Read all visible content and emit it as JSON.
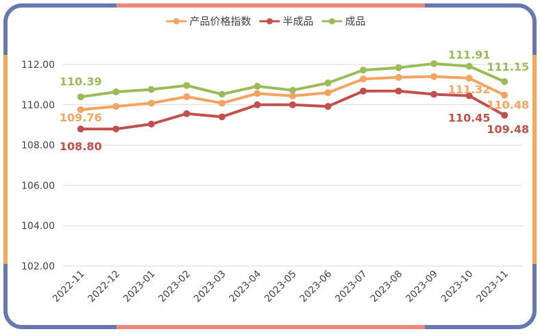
{
  "chart_data": {
    "type": "line",
    "title": "",
    "xlabel": "",
    "ylabel": "",
    "ylim": [
      102,
      112
    ],
    "yticks": [
      "102.00",
      "104.00",
      "106.00",
      "108.00",
      "110.00",
      "112.00"
    ],
    "categories": [
      "2022-11",
      "2022-12",
      "2023-01",
      "2023-02",
      "2023-03",
      "2023-04",
      "2023-05",
      "2023-06",
      "2023-07",
      "2023-08",
      "2023-09",
      "2023-10",
      "2023-11"
    ],
    "legend_position": "top-center",
    "grid": "horizontal",
    "series": [
      {
        "name": "产品价格指数",
        "color": "#f4a460",
        "values": [
          109.76,
          109.92,
          110.08,
          110.4,
          110.08,
          110.56,
          110.44,
          110.6,
          111.28,
          111.36,
          111.4,
          111.32,
          110.48
        ],
        "labels": [
          {
            "index": 0,
            "text": "109.76"
          },
          {
            "index": 11,
            "text": "111.32"
          },
          {
            "index": 12,
            "text": "110.48"
          }
        ]
      },
      {
        "name": "半成品",
        "color": "#c0504d",
        "values": [
          108.8,
          108.8,
          109.04,
          109.56,
          109.4,
          110.0,
          110.0,
          109.92,
          110.68,
          110.68,
          110.52,
          110.45,
          109.48
        ],
        "labels": [
          {
            "index": 0,
            "text": "108.80"
          },
          {
            "index": 11,
            "text": "110.45"
          },
          {
            "index": 12,
            "text": "109.48"
          }
        ]
      },
      {
        "name": "成品",
        "color": "#9bbb59",
        "values": [
          110.39,
          110.64,
          110.76,
          110.96,
          110.52,
          110.92,
          110.72,
          111.08,
          111.72,
          111.84,
          112.04,
          111.91,
          111.15
        ],
        "labels": [
          {
            "index": 0,
            "text": "110.39"
          },
          {
            "index": 11,
            "text": "111.91"
          },
          {
            "index": 12,
            "text": "111.15"
          }
        ]
      }
    ]
  },
  "frame_colors": {
    "corner_blue": "#6777b0",
    "edge_salmon": "#e8897a",
    "edge_orange": "#f4a85a",
    "axis": "#d9d9d9",
    "tick_text": "#404040"
  }
}
